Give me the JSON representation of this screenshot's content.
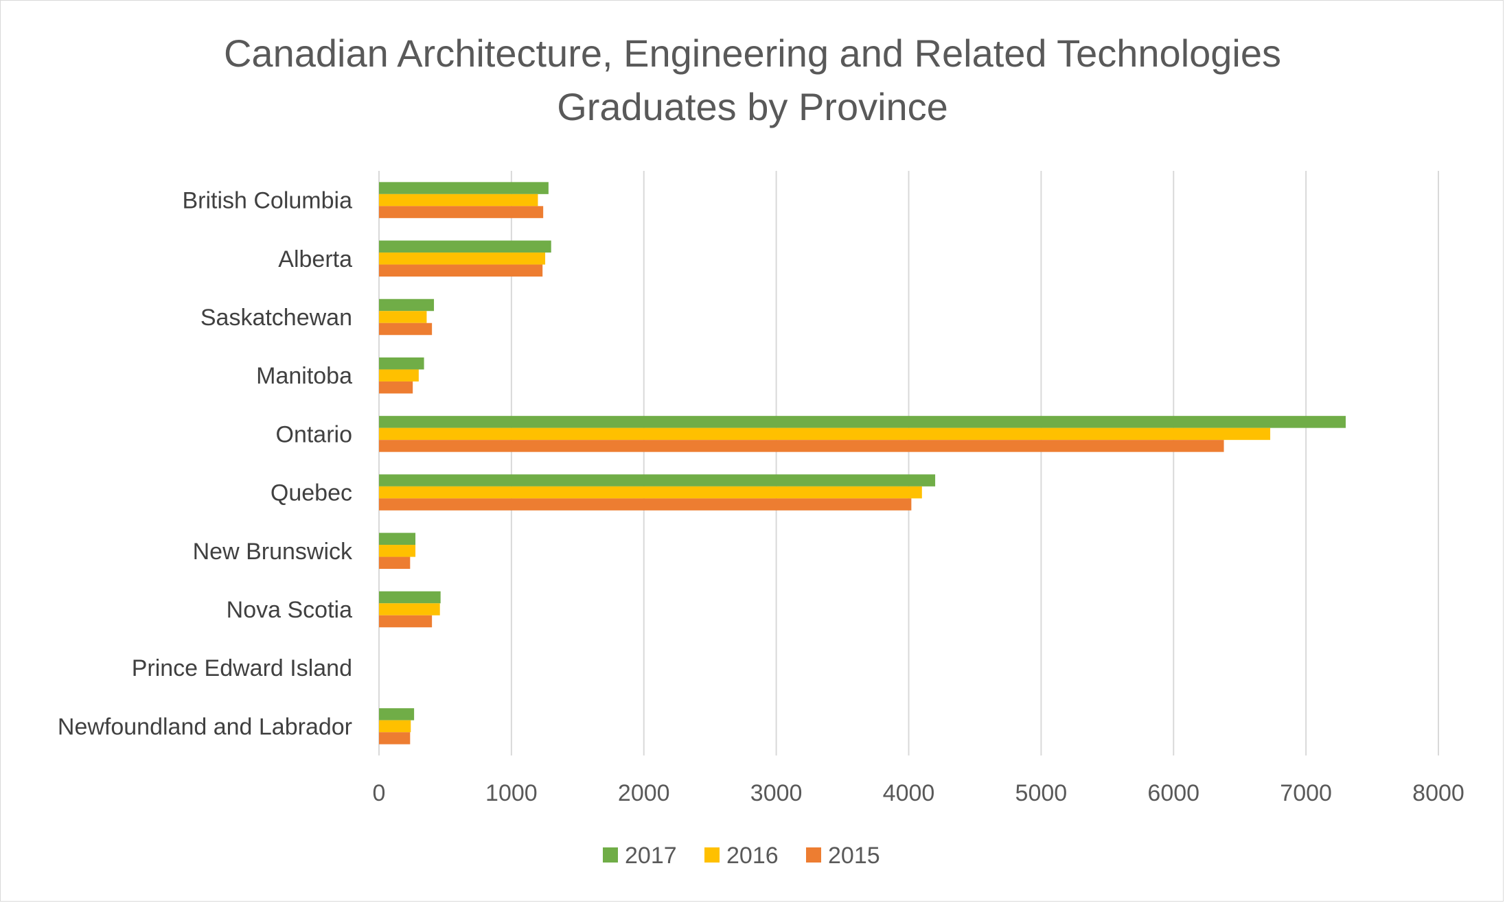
{
  "chart_data": {
    "type": "bar",
    "orientation": "horizontal",
    "title": "Canadian Architecture, Engineering and Related Technologies Graduates by Province",
    "title_lines": [
      "Canadian Architecture, Engineering and Related Technologies",
      "Graduates by Province"
    ],
    "categories": [
      "British Columbia",
      "Alberta",
      "Saskatchewan",
      "Manitoba",
      "Ontario",
      "Quebec",
      "New Brunswick",
      "Nova Scotia",
      "Prince Edward Island",
      "Newfoundland and Labrador"
    ],
    "series": [
      {
        "name": "2017",
        "color": "#70ad47",
        "values": [
          1280,
          1300,
          415,
          340,
          7300,
          4200,
          275,
          465,
          0,
          265
        ]
      },
      {
        "name": "2016",
        "color": "#ffc000",
        "values": [
          1200,
          1255,
          360,
          300,
          6730,
          4100,
          275,
          460,
          0,
          240
        ]
      },
      {
        "name": "2015",
        "color": "#ed7d31",
        "values": [
          1240,
          1235,
          400,
          255,
          6380,
          4020,
          235,
          400,
          0,
          235
        ]
      }
    ],
    "xlim": [
      0,
      8000
    ],
    "x_ticks": [
      "0",
      "1000",
      "2000",
      "3000",
      "4000",
      "5000",
      "6000",
      "7000",
      "8000"
    ],
    "xlabel": "",
    "ylabel": "",
    "grid": "vertical",
    "legend_position": "bottom"
  }
}
